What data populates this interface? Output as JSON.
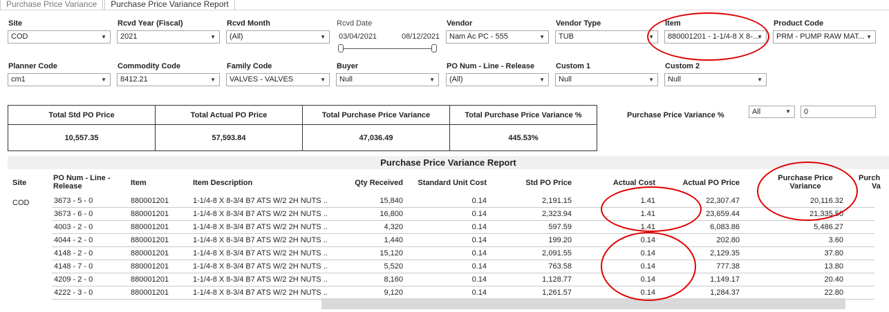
{
  "tabs": [
    "Purchase Price Variance",
    "Purchase Price Variance Report"
  ],
  "filters": {
    "site": {
      "label": "Site",
      "value": "COD"
    },
    "rcvd_year": {
      "label": "Rcvd Year",
      "label_suffix": "(Fiscal)",
      "value": "2021"
    },
    "rcvd_month": {
      "label": "Rcvd Month",
      "value": "(All)"
    },
    "rcvd_date": {
      "label": "Rcvd Date",
      "start": "03/04/2021",
      "end": "08/12/2021"
    },
    "vendor": {
      "label": "Vendor",
      "value": "Nam Ac PC - 555"
    },
    "vendor_type": {
      "label": "Vendor Type",
      "value": "TUB"
    },
    "item": {
      "label": "Item",
      "value": "880001201 - 1-1/4-8 X 8-..."
    },
    "product_code": {
      "label": "Product Code",
      "value": "PRM - PUMP RAW MAT..."
    },
    "planner_code": {
      "label": "Planner Code",
      "value": "cm1"
    },
    "commodity_code": {
      "label": "Commodity Code",
      "value": "8412.21"
    },
    "family_code": {
      "label": "Family Code",
      "value": "VALVES - VALVES"
    },
    "buyer": {
      "label": "Buyer",
      "value": "Null"
    },
    "po_num": {
      "label": "PO Num - Line - Release",
      "value": "(All)"
    },
    "custom1": {
      "label": "Custom 1",
      "value": "Null"
    },
    "custom2": {
      "label": "Custom 2",
      "value": "Null"
    }
  },
  "summary": {
    "headers": [
      "Total Std PO Price",
      "Total Actual PO Price",
      "Total Purchase Price Variance",
      "Total Purchase Price Variance %"
    ],
    "values": [
      "10,557.35",
      "57,593.84",
      "47,036.49",
      "445.53%"
    ]
  },
  "ppv_filter": {
    "label": "Purchase Price Variance %",
    "select": "All",
    "input": "0"
  },
  "report": {
    "title": "Purchase Price Variance Report",
    "columns": {
      "site": "Site",
      "po_num_1": "PO Num - Line -",
      "po_num_2": "Release",
      "item": "Item",
      "item_desc": "Item Description",
      "qty": "Qty Received",
      "std_unit": "Standard Unit Cost",
      "std_po": "Std PO Price",
      "actual_cost": "Actual Cost",
      "actual_po": "Actual PO Price",
      "ppv_1": "Purchase Price",
      "ppv_2": "Variance",
      "extra_1": "Purch",
      "extra_2": "Va"
    },
    "site_value": "COD",
    "rows": [
      {
        "po": "3673 - 5 - 0",
        "item": "880001201",
        "desc": "1-1/4-8 X 8-3/4 B7 ATS W/2 2H NUTS ..",
        "qty": "15,840",
        "unit": "0.14",
        "std": "2,191.15",
        "actual": "1.41",
        "actual_po": "22,307.47",
        "ppv": "20,116.32"
      },
      {
        "po": "3673 - 6 - 0",
        "item": "880001201",
        "desc": "1-1/4-8 X 8-3/4 B7 ATS W/2 2H NUTS ..",
        "qty": "16,800",
        "unit": "0.14",
        "std": "2,323.94",
        "actual": "1.41",
        "actual_po": "23,659.44",
        "ppv": "21,335.50"
      },
      {
        "po": "4003 - 2 - 0",
        "item": "880001201",
        "desc": "1-1/4-8 X 8-3/4 B7 ATS W/2 2H NUTS ..",
        "qty": "4,320",
        "unit": "0.14",
        "std": "597.59",
        "actual": "1.41",
        "actual_po": "6,083.86",
        "ppv": "5,486.27"
      },
      {
        "po": "4044 - 2 - 0",
        "item": "880001201",
        "desc": "1-1/4-8 X 8-3/4 B7 ATS W/2 2H NUTS ..",
        "qty": "1,440",
        "unit": "0.14",
        "std": "199.20",
        "actual": "0.14",
        "actual_po": "202.80",
        "ppv": "3.60"
      },
      {
        "po": "4148 - 2 - 0",
        "item": "880001201",
        "desc": "1-1/4-8 X 8-3/4 B7 ATS W/2 2H NUTS ..",
        "qty": "15,120",
        "unit": "0.14",
        "std": "2,091.55",
        "actual": "0.14",
        "actual_po": "2,129.35",
        "ppv": "37.80"
      },
      {
        "po": "4148 - 7 - 0",
        "item": "880001201",
        "desc": "1-1/4-8 X 8-3/4 B7 ATS W/2 2H NUTS ..",
        "qty": "5,520",
        "unit": "0.14",
        "std": "763.58",
        "actual": "0.14",
        "actual_po": "777.38",
        "ppv": "13.80"
      },
      {
        "po": "4209 - 2 - 0",
        "item": "880001201",
        "desc": "1-1/4-8 X 8-3/4 B7 ATS W/2 2H NUTS ..",
        "qty": "8,160",
        "unit": "0.14",
        "std": "1,128.77",
        "actual": "0.14",
        "actual_po": "1,149.17",
        "ppv": "20.40"
      },
      {
        "po": "4222 - 3 - 0",
        "item": "880001201",
        "desc": "1-1/4-8 X 8-3/4 B7 ATS W/2 2H NUTS ..",
        "qty": "9,120",
        "unit": "0.14",
        "std": "1,261.57",
        "actual": "0.14",
        "actual_po": "1,284.37",
        "ppv": "22.80"
      }
    ]
  },
  "colors": {
    "annotation": "#e00000",
    "title_bar": "#f0f0f0",
    "border": "#a6a6a6"
  }
}
